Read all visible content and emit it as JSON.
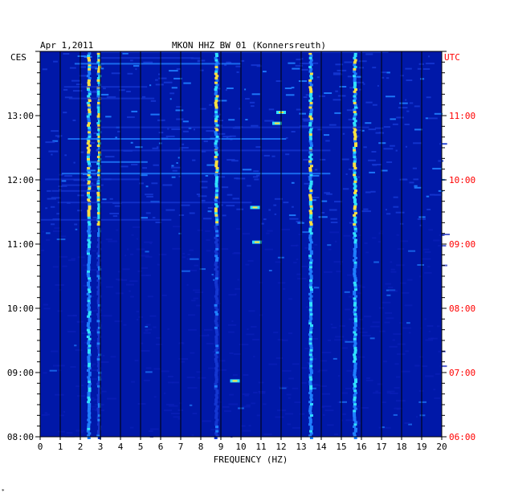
{
  "header": {
    "date": "Apr 1,2011",
    "station": "MKON HHZ BW 01 (Konnersreuth)"
  },
  "chart_data": {
    "type": "heatmap",
    "title": "MKON HHZ BW 01 (Konnersreuth)",
    "date": "Apr 1,2011",
    "xlabel": "FREQUENCY (HZ)",
    "xlim": [
      0,
      20
    ],
    "x_ticks": [
      "0",
      "1",
      "2",
      "3",
      "4",
      "5",
      "6",
      "7",
      "8",
      "9",
      "10",
      "11",
      "12",
      "13",
      "14",
      "15",
      "16",
      "17",
      "18",
      "19",
      "20"
    ],
    "left_axis": {
      "label": "CES",
      "ylim_hours": [
        8.0,
        14.0
      ],
      "ticks": [
        "13:00",
        "12:00",
        "11:00",
        "10:00",
        "09:00",
        "08:00"
      ],
      "tick_hours": [
        13,
        12,
        11,
        10,
        9,
        8
      ]
    },
    "right_axis": {
      "label": "UTC",
      "ticks": [
        "11:00",
        "10:00",
        "09:00",
        "08:00",
        "07:00",
        "06:00"
      ],
      "tick_hours": [
        11,
        10,
        9,
        8,
        7,
        6
      ],
      "color": "#ff0000"
    },
    "grid": "vertical lines at every 1 Hz",
    "colors": {
      "background": "#0018a8",
      "low": "#0a1fb8",
      "mid": "#1f7fff",
      "high": "#30e0ff",
      "peak": "#ffe040",
      "axis": "#000000",
      "utc": "#ff0000"
    },
    "persistent_bands_hz": [
      2.45,
      2.95,
      8.8,
      13.5,
      15.7
    ],
    "noisy_period_hours": [
      11.3,
      14.0
    ],
    "bright_patches": [
      {
        "hz": 10.7,
        "hour": 11.57
      },
      {
        "hz": 10.8,
        "hour": 11.03
      },
      {
        "hz": 12.0,
        "hour": 13.05
      },
      {
        "hz": 11.8,
        "hour": 12.88
      },
      {
        "hz": 9.7,
        "hour": 8.87
      }
    ]
  }
}
